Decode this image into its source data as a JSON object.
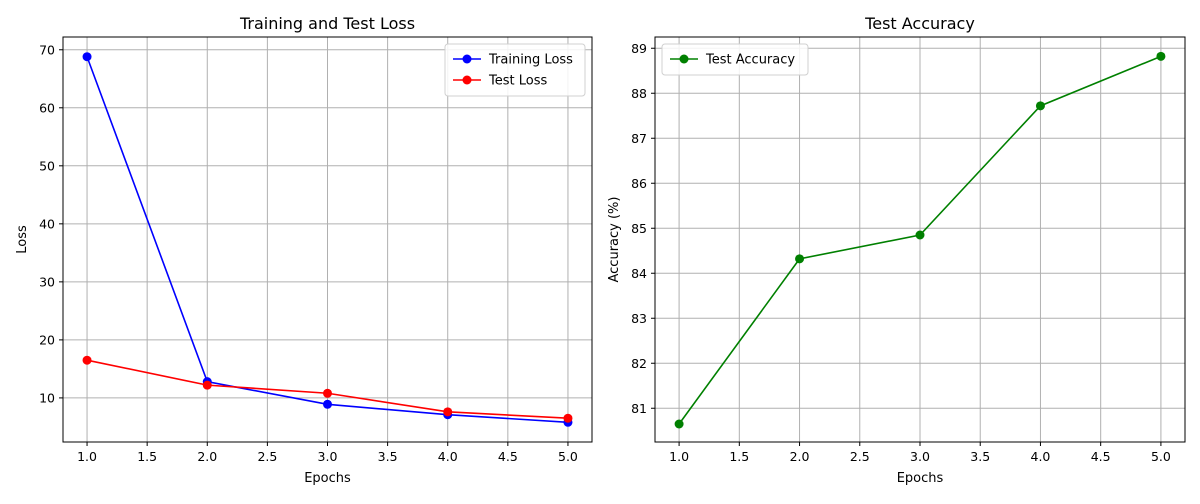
{
  "chart_data": [
    {
      "type": "line",
      "title": "Training and Test Loss",
      "xlabel": "Epochs",
      "ylabel": "Loss",
      "xlim": [
        0.8,
        5.2
      ],
      "ylim": [
        2.4,
        72.2
      ],
      "xticks": [
        1.0,
        1.5,
        2.0,
        2.5,
        3.0,
        3.5,
        4.0,
        4.5,
        5.0
      ],
      "xtick_labels": [
        "1.0",
        "1.5",
        "2.0",
        "2.5",
        "3.0",
        "3.5",
        "4.0",
        "4.5",
        "5.0"
      ],
      "yticks": [
        10,
        20,
        30,
        40,
        50,
        60,
        70
      ],
      "ytick_labels": [
        "10",
        "20",
        "30",
        "40",
        "50",
        "60",
        "70"
      ],
      "grid": true,
      "legend_position": "top-right",
      "x": [
        1,
        2,
        3,
        4,
        5
      ],
      "series": [
        {
          "name": "Training Loss",
          "color": "#0000ff",
          "values": [
            68.8,
            12.8,
            8.9,
            7.1,
            5.8
          ]
        },
        {
          "name": "Test Loss",
          "color": "#ff0000",
          "values": [
            16.5,
            12.2,
            10.8,
            7.6,
            6.5
          ]
        }
      ]
    },
    {
      "type": "line",
      "title": "Test Accuracy",
      "xlabel": "Epochs",
      "ylabel": "Accuracy (%)",
      "xlim": [
        0.8,
        5.2
      ],
      "ylim": [
        80.25,
        89.25
      ],
      "xticks": [
        1.0,
        1.5,
        2.0,
        2.5,
        3.0,
        3.5,
        4.0,
        4.5,
        5.0
      ],
      "xtick_labels": [
        "1.0",
        "1.5",
        "2.0",
        "2.5",
        "3.0",
        "3.5",
        "4.0",
        "4.5",
        "5.0"
      ],
      "yticks": [
        81,
        82,
        83,
        84,
        85,
        86,
        87,
        88,
        89
      ],
      "ytick_labels": [
        "81",
        "82",
        "83",
        "84",
        "85",
        "86",
        "87",
        "88",
        "89"
      ],
      "grid": true,
      "legend_position": "top-left",
      "x": [
        1,
        2,
        3,
        4,
        5
      ],
      "series": [
        {
          "name": "Test Accuracy",
          "color": "#008000",
          "values": [
            80.65,
            84.32,
            84.85,
            87.72,
            88.82
          ]
        }
      ]
    }
  ]
}
